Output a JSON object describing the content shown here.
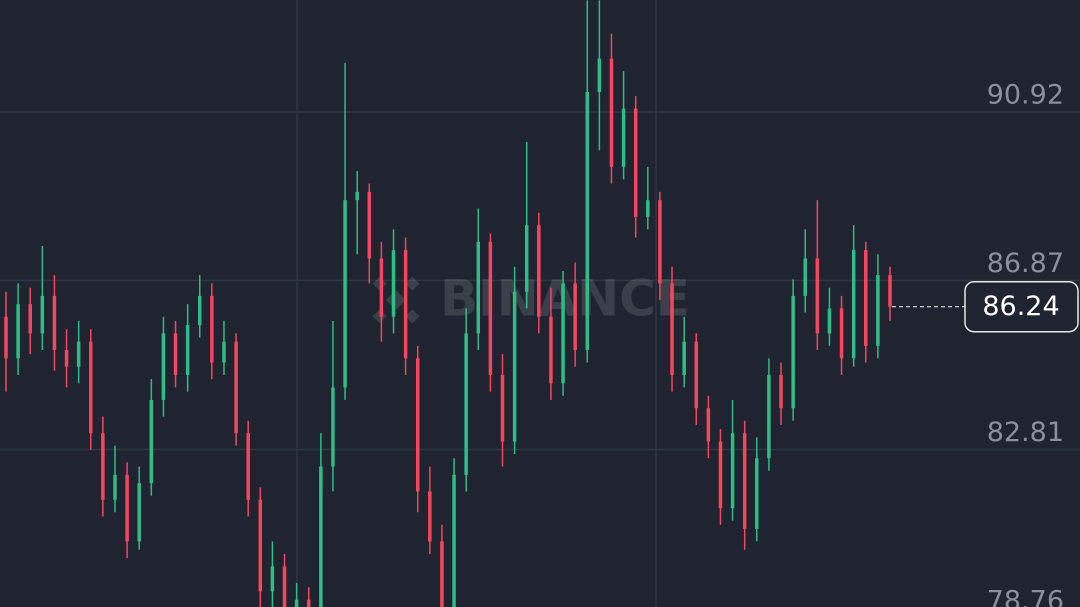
{
  "chart_data": {
    "type": "candlestick",
    "watermark": "BINANCE",
    "open": [
      86.0,
      85.0,
      86.3,
      85.6,
      86.5,
      85.2,
      84.8,
      85.4,
      83.2,
      81.6,
      82.2,
      80.6,
      82.0,
      84.0,
      85.6,
      84.6,
      85.8,
      86.5,
      84.9,
      85.4,
      83.2,
      81.6,
      79.4,
      80.0,
      78.6,
      79.2,
      78.8,
      82.4,
      84.3,
      88.8,
      89.0,
      87.4,
      86.0,
      87.6,
      85.0,
      81.8,
      80.6,
      79.0,
      82.2,
      85.6,
      87.8,
      84.6,
      83.0,
      86.6,
      88.2,
      86.0,
      84.4,
      86.8,
      85.2,
      91.4,
      92.2,
      89.6,
      91.0,
      88.4,
      88.8,
      86.8,
      84.6,
      85.4,
      83.8,
      83.0,
      81.4,
      83.2,
      80.9,
      82.6,
      84.6,
      83.8,
      86.5,
      87.4,
      85.6,
      86.2,
      85.0,
      87.6,
      85.3,
      87.0
    ],
    "high": [
      86.6,
      86.8,
      86.7,
      87.7,
      87.0,
      85.7,
      85.9,
      85.7,
      83.6,
      82.9,
      82.5,
      82.4,
      84.5,
      86.0,
      85.9,
      86.3,
      87.0,
      86.8,
      85.9,
      85.6,
      83.5,
      81.9,
      80.6,
      80.3,
      79.6,
      79.5,
      83.2,
      85.9,
      92.1,
      89.5,
      89.2,
      87.8,
      88.1,
      87.9,
      85.3,
      82.4,
      81.0,
      82.6,
      86.2,
      88.6,
      88.0,
      85.1,
      87.2,
      90.2,
      88.5,
      86.7,
      87.1,
      87.3,
      93.6,
      93.6,
      92.8,
      91.9,
      91.3,
      89.6,
      89.0,
      87.2,
      86.0,
      85.6,
      84.1,
      83.3,
      84.0,
      83.5,
      83.1,
      85.0,
      84.9,
      86.9,
      88.1,
      88.8,
      86.7,
      86.5,
      88.2,
      87.8,
      87.5,
      87.2
    ],
    "low": [
      84.2,
      84.6,
      85.1,
      85.2,
      84.7,
      84.3,
      84.4,
      82.8,
      81.2,
      81.3,
      80.2,
      80.4,
      81.7,
      83.6,
      84.3,
      84.2,
      85.5,
      84.5,
      84.6,
      82.9,
      81.2,
      78.9,
      79.0,
      78.3,
      78.3,
      78.4,
      78.4,
      81.8,
      84.0,
      87.5,
      86.8,
      85.4,
      85.6,
      84.6,
      81.3,
      80.3,
      78.6,
      78.7,
      81.8,
      85.2,
      84.2,
      82.4,
      82.7,
      86.2,
      85.6,
      84.0,
      84.1,
      84.8,
      84.9,
      90.0,
      89.2,
      89.3,
      87.9,
      88.1,
      86.4,
      84.2,
      84.3,
      83.4,
      82.6,
      81.0,
      81.1,
      80.4,
      80.6,
      82.3,
      83.4,
      83.5,
      86.1,
      85.2,
      85.3,
      84.6,
      84.8,
      84.9,
      85.0,
      85.9
    ],
    "close": [
      85.0,
      86.3,
      85.6,
      86.5,
      85.2,
      84.8,
      85.4,
      83.2,
      81.6,
      82.2,
      80.6,
      82.0,
      84.0,
      85.6,
      84.6,
      85.8,
      86.5,
      84.9,
      85.4,
      83.2,
      81.6,
      79.4,
      80.0,
      78.6,
      79.2,
      78.8,
      82.4,
      84.3,
      88.8,
      89.0,
      87.4,
      86.0,
      87.6,
      85.0,
      81.8,
      80.6,
      79.0,
      82.2,
      85.6,
      87.8,
      84.6,
      83.0,
      86.6,
      88.2,
      86.0,
      84.4,
      86.8,
      85.2,
      91.4,
      92.2,
      89.6,
      91.0,
      88.4,
      88.8,
      86.8,
      84.6,
      85.4,
      83.8,
      83.0,
      81.4,
      83.2,
      80.9,
      82.6,
      84.6,
      83.8,
      86.5,
      87.4,
      85.6,
      86.2,
      85.0,
      87.6,
      85.3,
      87.0,
      86.24
    ],
    "up_color": "#2ebd85",
    "down_color": "#f6465d",
    "ylim": [
      78.76,
      93.61
    ],
    "yticks": [
      78.76,
      82.81,
      86.87,
      90.92
    ],
    "grid": true
  }
}
